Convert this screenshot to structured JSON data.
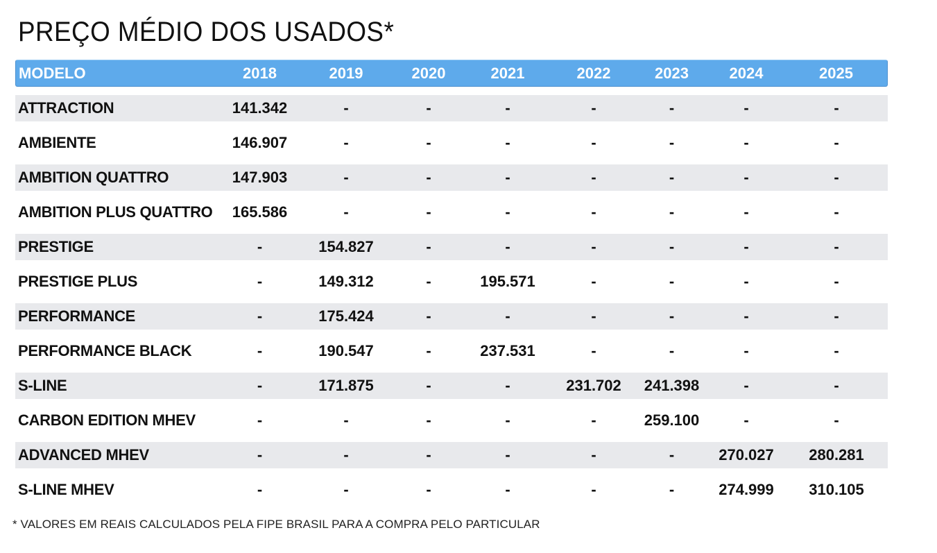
{
  "title": "PREÇO MÉDIO DOS USADOS*",
  "header": {
    "model": "MODELO",
    "years": [
      "2018",
      "2019",
      "2020",
      "2021",
      "2022",
      "2023",
      "2024",
      "2025"
    ]
  },
  "rows": [
    {
      "model": "ATTRACTION",
      "values": [
        "141.342",
        "-",
        "-",
        "-",
        "-",
        "-",
        "-",
        "-"
      ]
    },
    {
      "model": "AMBIENTE",
      "values": [
        "146.907",
        "-",
        "-",
        "-",
        "-",
        "-",
        "-",
        "-"
      ]
    },
    {
      "model": "AMBITION QUATTRO",
      "values": [
        "147.903",
        "-",
        "-",
        "-",
        "-",
        "-",
        "-",
        "-"
      ]
    },
    {
      "model": "AMBITION PLUS QUATTRO",
      "values": [
        "165.586",
        "-",
        "-",
        "-",
        "-",
        "-",
        "-",
        "-"
      ]
    },
    {
      "model": "PRESTIGE",
      "values": [
        "-",
        "154.827",
        "-",
        "-",
        "-",
        "-",
        "-",
        "-"
      ]
    },
    {
      "model": "PRESTIGE PLUS",
      "values": [
        "-",
        "149.312",
        "-",
        "195.571",
        "-",
        "-",
        "-",
        "-"
      ]
    },
    {
      "model": "PERFORMANCE",
      "values": [
        "-",
        "175.424",
        "-",
        "-",
        "-",
        "-",
        "-",
        "-"
      ]
    },
    {
      "model": "PERFORMANCE BLACK",
      "values": [
        "-",
        "190.547",
        "-",
        "237.531",
        "-",
        "-",
        "-",
        "-"
      ]
    },
    {
      "model": "S-LINE",
      "values": [
        "-",
        "171.875",
        "-",
        "-",
        "231.702",
        "241.398",
        "-",
        "-"
      ]
    },
    {
      "model": "CARBON EDITION MHEV",
      "values": [
        "-",
        "-",
        "-",
        "-",
        "-",
        "259.100",
        "-",
        "-"
      ]
    },
    {
      "model": "ADVANCED MHEV",
      "values": [
        "-",
        "-",
        "-",
        "-",
        "-",
        "-",
        "270.027",
        "280.281"
      ]
    },
    {
      "model": "S-LINE MHEV",
      "values": [
        "-",
        "-",
        "-",
        "-",
        "-",
        "-",
        "274.999",
        "310.105"
      ]
    }
  ],
  "footnote": "* VALORES EM REAIS CALCULADOS PELA FIPE BRASIL PARA A COMPRA PELO PARTICULAR",
  "colors": {
    "header_bg": "#5eaaeb",
    "header_text": "#ffffff",
    "row_shade": "#e8e9ec",
    "text": "#111111"
  }
}
